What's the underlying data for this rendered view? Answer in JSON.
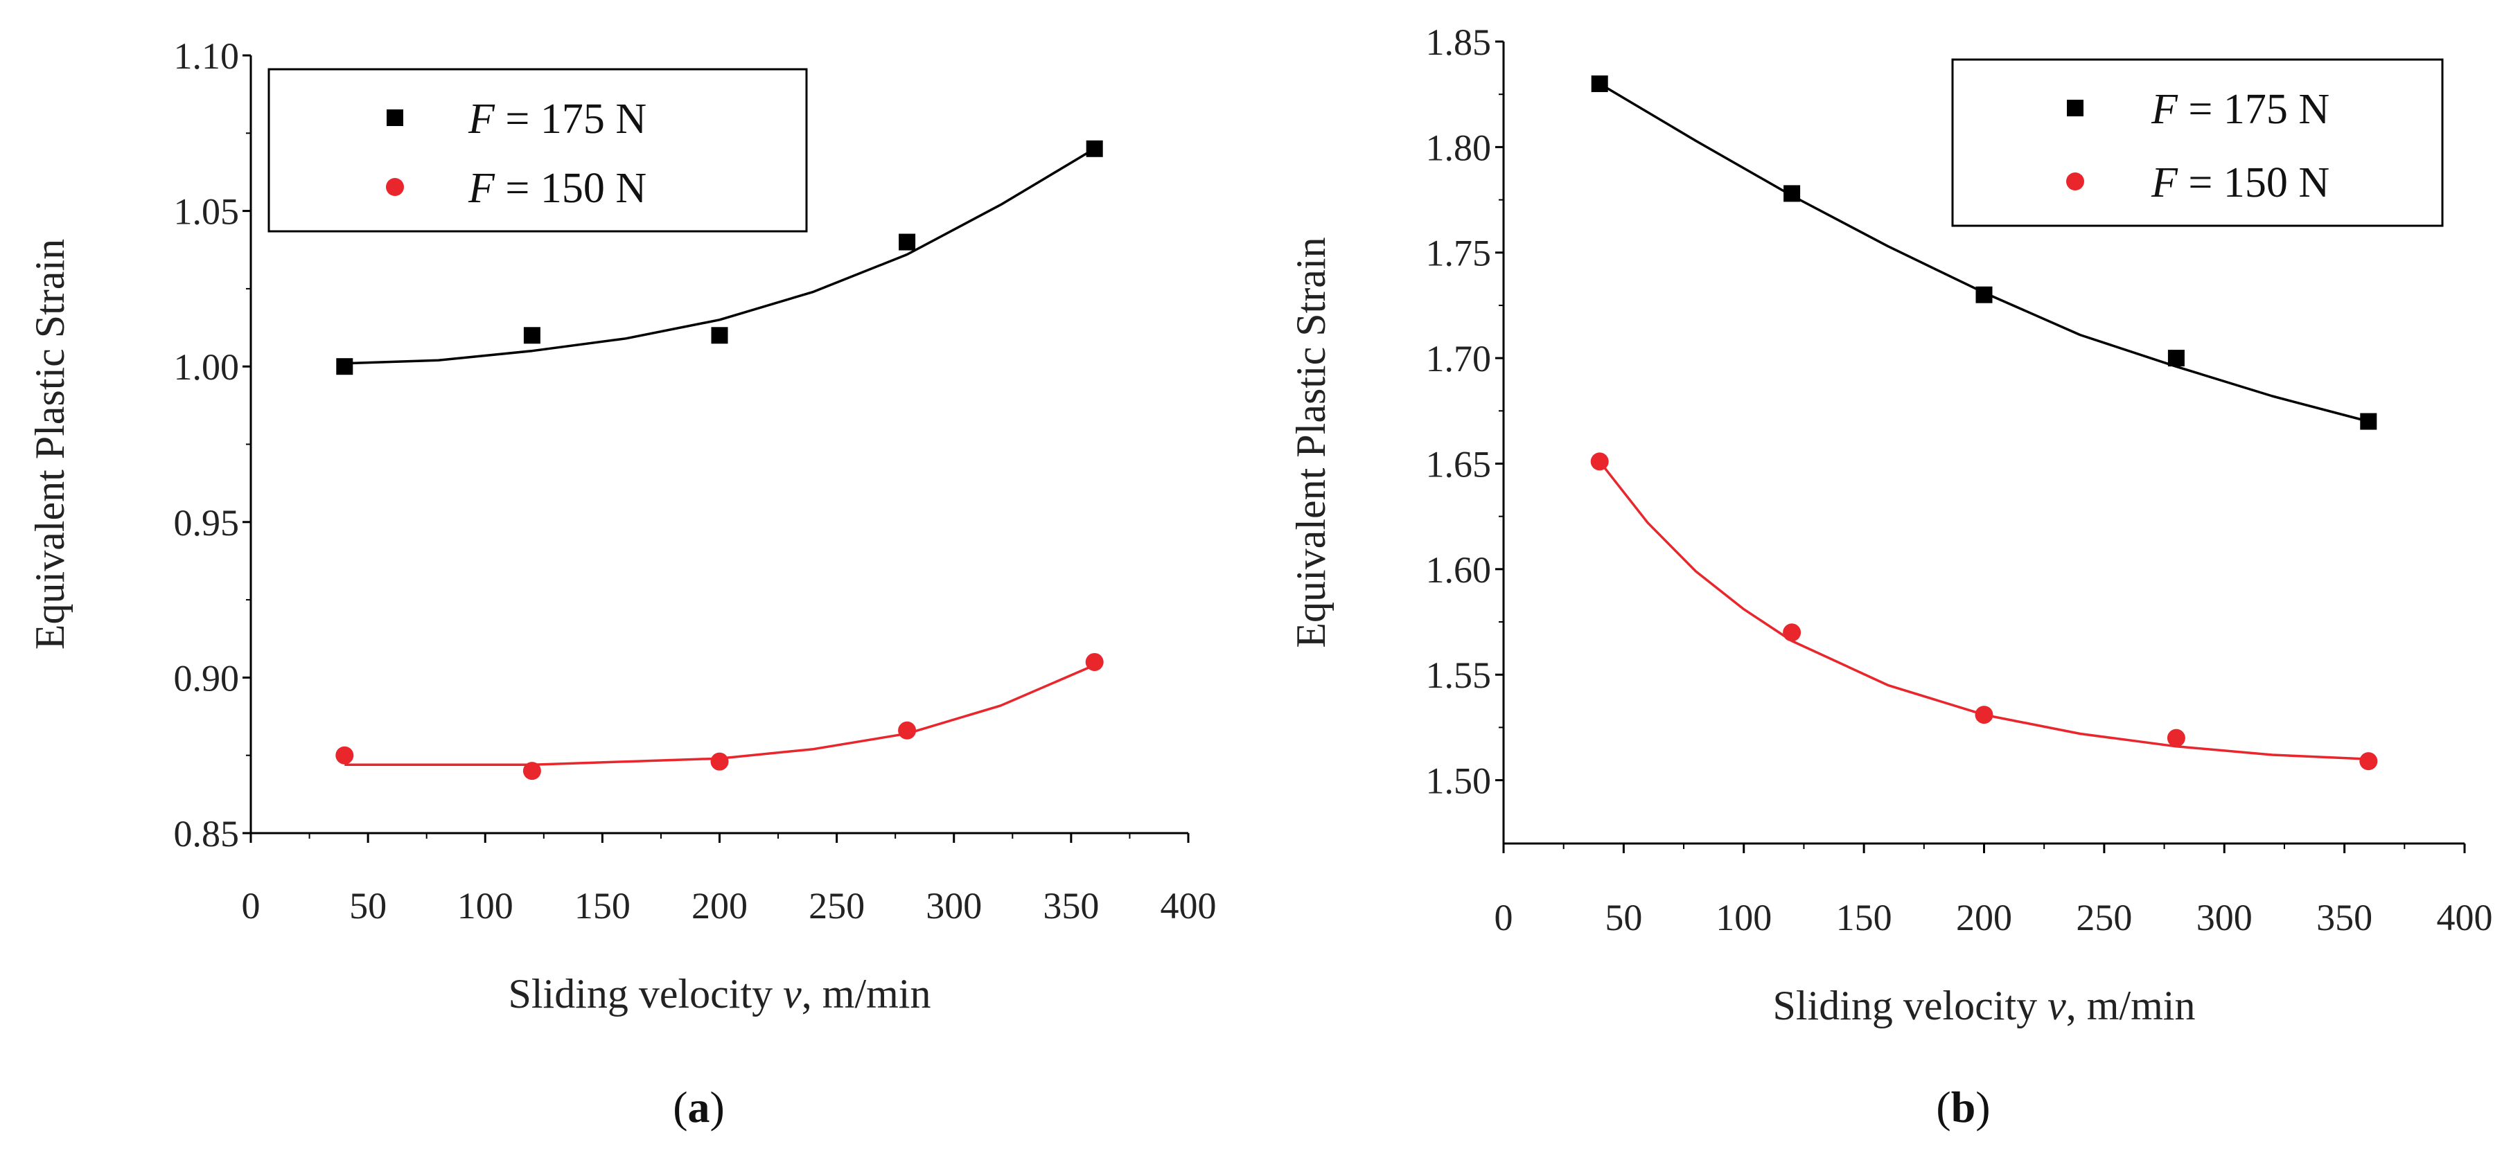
{
  "chart_data": [
    {
      "type": "scatter",
      "panel_label": "(a)",
      "panel_letter": "a",
      "xlabel": "Sliding velocity v, m/min",
      "xlabel_parts": {
        "pre": "Sliding velocity ",
        "var": "v",
        "post": ", m/min"
      },
      "ylabel": "Equivalent Plastic Strain",
      "xlim": [
        0,
        400
      ],
      "ylim": [
        0.85,
        1.1
      ],
      "xticks": [
        0,
        50,
        100,
        150,
        200,
        250,
        300,
        350,
        400
      ],
      "xtick_labels": [
        "0",
        "50",
        "100",
        "150",
        "200",
        "250",
        "300",
        "350",
        "400"
      ],
      "yticks": [
        0.85,
        0.9,
        0.95,
        1.0,
        1.05,
        1.1
      ],
      "ytick_labels": [
        "0.85",
        "0.90",
        "0.95",
        "1.00",
        "1.05",
        "1.10"
      ],
      "grid": false,
      "legend_position": "top-left",
      "series": [
        {
          "name": "F = 175 N",
          "name_parts": {
            "var": "F",
            "rest": " = 175 N"
          },
          "marker": "square",
          "color": "#000000",
          "x": [
            40,
            120,
            200,
            280,
            360
          ],
          "y": [
            1.0,
            1.01,
            1.01,
            1.04,
            1.07
          ],
          "fit": [
            [
              40,
              1.001
            ],
            [
              80,
              1.002
            ],
            [
              120,
              1.005
            ],
            [
              160,
              1.009
            ],
            [
              200,
              1.015
            ],
            [
              240,
              1.024
            ],
            [
              280,
              1.036
            ],
            [
              320,
              1.052
            ],
            [
              360,
              1.07
            ]
          ]
        },
        {
          "name": "F = 150 N",
          "name_parts": {
            "var": "F",
            "rest": " = 150 N"
          },
          "marker": "circle",
          "color": "#e8262c",
          "x": [
            40,
            120,
            200,
            280,
            360
          ],
          "y": [
            0.875,
            0.87,
            0.873,
            0.883,
            0.905
          ],
          "fit": [
            [
              40,
              0.872
            ],
            [
              80,
              0.872
            ],
            [
              120,
              0.872
            ],
            [
              160,
              0.873
            ],
            [
              200,
              0.874
            ],
            [
              240,
              0.877
            ],
            [
              280,
              0.882
            ],
            [
              320,
              0.891
            ],
            [
              360,
              0.904
            ]
          ]
        }
      ]
    },
    {
      "type": "scatter",
      "panel_label": "(b)",
      "panel_letter": "b",
      "xlabel": "Sliding velocity v, m/min",
      "xlabel_parts": {
        "pre": "Sliding velocity ",
        "var": "v",
        "post": ", m/min"
      },
      "ylabel": "Equivalent Plastic Strain",
      "xlim": [
        0,
        400
      ],
      "ylim": [
        1.47,
        1.85
      ],
      "xticks": [
        0,
        50,
        100,
        150,
        200,
        250,
        300,
        350,
        400
      ],
      "xtick_labels": [
        "0",
        "50",
        "100",
        "150",
        "200",
        "250",
        "300",
        "350",
        "400"
      ],
      "yticks": [
        1.5,
        1.55,
        1.6,
        1.65,
        1.7,
        1.75,
        1.8,
        1.85
      ],
      "ytick_labels": [
        "1.50",
        "1.55",
        "1.60",
        "1.65",
        "1.70",
        "1.75",
        "1.80",
        "1.85"
      ],
      "grid": false,
      "legend_position": "top-right",
      "series": [
        {
          "name": "F = 175 N",
          "name_parts": {
            "var": "F",
            "rest": " = 175 N"
          },
          "marker": "square",
          "color": "#000000",
          "x": [
            40,
            120,
            200,
            280,
            360
          ],
          "y": [
            1.83,
            1.778,
            1.73,
            1.7,
            1.67
          ],
          "fit": [
            [
              40,
              1.83
            ],
            [
              80,
              1.803
            ],
            [
              120,
              1.777
            ],
            [
              160,
              1.753
            ],
            [
              200,
              1.731
            ],
            [
              240,
              1.711
            ],
            [
              280,
              1.696
            ],
            [
              320,
              1.682
            ],
            [
              360,
              1.67
            ]
          ]
        },
        {
          "name": "F = 150 N",
          "name_parts": {
            "var": "F",
            "rest": " = 150 N"
          },
          "marker": "circle",
          "color": "#e8262c",
          "x": [
            40,
            120,
            200,
            280,
            360
          ],
          "y": [
            1.651,
            1.57,
            1.531,
            1.52,
            1.509
          ],
          "fit": [
            [
              40,
              1.651
            ],
            [
              60,
              1.622
            ],
            [
              80,
              1.599
            ],
            [
              100,
              1.581
            ],
            [
              120,
              1.566
            ],
            [
              160,
              1.545
            ],
            [
              200,
              1.531
            ],
            [
              240,
              1.522
            ],
            [
              280,
              1.516
            ],
            [
              320,
              1.512
            ],
            [
              360,
              1.51
            ]
          ]
        }
      ]
    }
  ]
}
